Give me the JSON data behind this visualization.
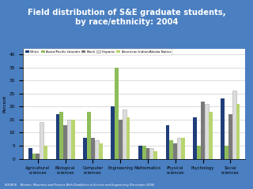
{
  "title": "Field distribution of S&E graduate students,\nby race/ethnicity: 2004",
  "title_color": "white",
  "background_color": "#4a7fc1",
  "chart_bg": "white",
  "ylabel": "Percent",
  "ylim": [
    0,
    42
  ],
  "yticks": [
    0,
    5,
    10,
    15,
    20,
    25,
    30,
    35,
    40
  ],
  "categories": [
    "Agricultural\nsciences",
    "Biological\nsciences",
    "Computer\nsciences",
    "Engineering",
    "Mathematics",
    "Physical\nsciences",
    "Psychology",
    "Social\nsciences"
  ],
  "groups": [
    "White",
    "Asian/Pacific Islander",
    "Black",
    "Hispanic",
    "American Indian/Alaska Native"
  ],
  "colors": [
    "#1f3d7a",
    "#8fbc5a",
    "#7a7a7a",
    "#dcdcdc",
    "#b8d470"
  ],
  "source_text": "SOURCE:   Women, Minorities and Persons With Disabilities in Science and Engineering (December 2006)",
  "data": {
    "White": [
      4,
      17,
      8,
      20,
      5,
      13,
      16,
      23
    ],
    "Asian/Pacific Islander": [
      2,
      18,
      18,
      35,
      5,
      7,
      5,
      5
    ],
    "Black": [
      2,
      13,
      8,
      15,
      4,
      6,
      22,
      17
    ],
    "Hispanic": [
      14,
      15,
      7,
      19,
      4,
      8,
      21,
      26
    ],
    "American Indian/Alaska Native": [
      5,
      15,
      6,
      16,
      3,
      8,
      18,
      21
    ]
  }
}
